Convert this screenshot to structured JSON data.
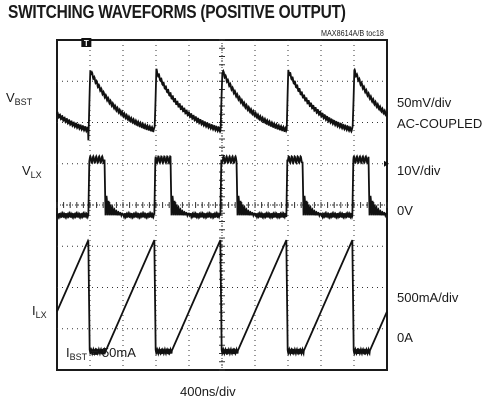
{
  "title": "SWITCHING WAVEFORMS (POSITIVE OUTPUT)",
  "doc_id": "MAX8614A/B toc18",
  "trigger_marker": "T",
  "channels": [
    {
      "name_main": "V",
      "name_sub": "BST",
      "scale": "50mV/div",
      "coupling": "AC-COUPLED",
      "zero": ""
    },
    {
      "name_main": "V",
      "name_sub": "LX",
      "scale": "10V/div",
      "coupling": "",
      "zero": "0V"
    },
    {
      "name_main": "I",
      "name_sub": "LX",
      "scale": "500mA/div",
      "coupling": "",
      "zero": "0A"
    }
  ],
  "annotation": {
    "main": "I",
    "sub": "BST",
    "rest": " = 50mA"
  },
  "timebase": "400ns/div",
  "chart_data": {
    "type": "line",
    "title": "SWITCHING WAVEFORMS (POSITIVE OUTPUT)",
    "xlabel": "400ns/div",
    "x_divisions": 10,
    "y_divisions": 8,
    "grid": true,
    "switching_period_div": 2.0,
    "switch_edges_div": [
      0.95,
      2.95,
      4.95,
      6.95,
      8.95
    ],
    "on_time_div": 0.52,
    "series": [
      {
        "name": "VBST",
        "scale": "50mV/div",
        "coupling": "AC-COUPLED",
        "description": "sharp rise at each switch edge then exponential-like decay",
        "peak_level_div": 7.25,
        "valley_level_div": 5.6
      },
      {
        "name": "VLX",
        "scale": "10V/div",
        "zero_label": "0V",
        "zero_level_div": 3.75,
        "high_level_div": 5.1,
        "description": "rectangular pulse followed by damped ringing"
      },
      {
        "name": "ILX",
        "scale": "500mA/div",
        "zero_label": "0A",
        "zero_level_div": 0.45,
        "peak_level_div": 3.15,
        "description": "triangular ramp-up during off-time, near 0A during on-time"
      }
    ]
  }
}
